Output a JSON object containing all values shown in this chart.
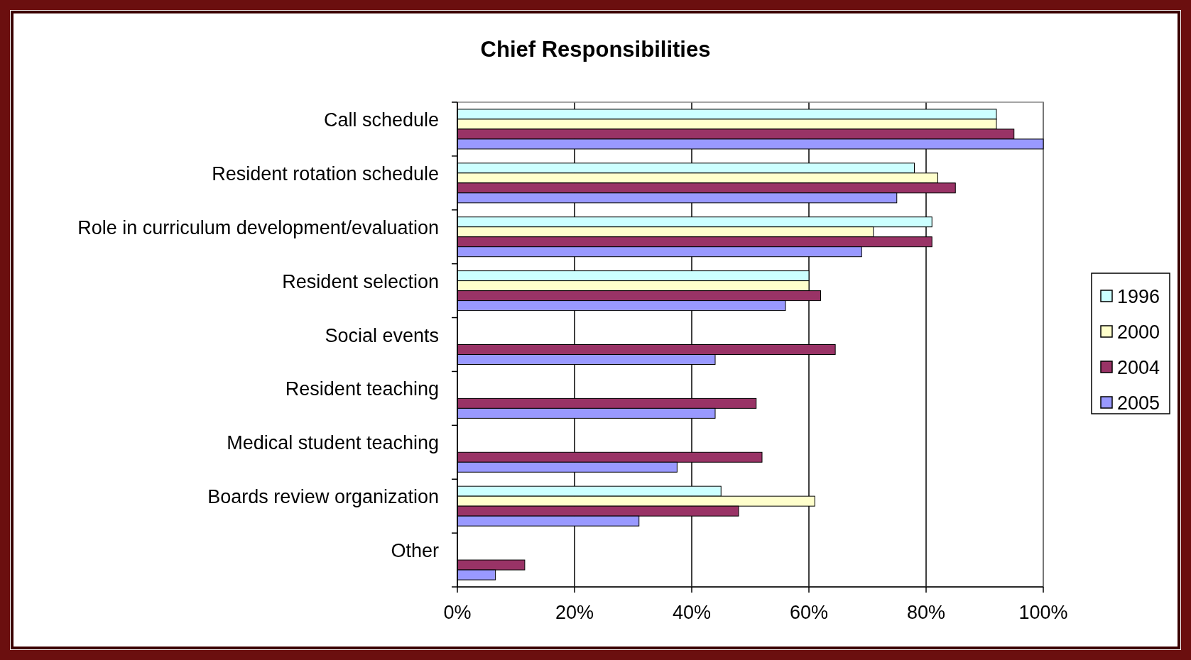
{
  "chart_data": {
    "type": "bar",
    "orientation": "horizontal",
    "title": "Chief Responsibilities",
    "categories": [
      "Call schedule",
      "Resident rotation schedule",
      "Role in curriculum development/evaluation",
      "Resident selection",
      "Social events",
      "Resident teaching",
      "Medical student teaching",
      "Boards review organization",
      "Other"
    ],
    "series": [
      {
        "name": "1996",
        "color": "#ccffff",
        "values": [
          92,
          78,
          81,
          60,
          null,
          null,
          null,
          45,
          null
        ]
      },
      {
        "name": "2000",
        "color": "#ffffcc",
        "values": [
          92,
          82,
          71,
          60,
          null,
          null,
          null,
          61,
          null
        ]
      },
      {
        "name": "2004",
        "color": "#993366",
        "values": [
          95,
          85,
          81,
          62,
          64.5,
          51,
          52,
          48,
          11.5
        ]
      },
      {
        "name": "2005",
        "color": "#9999ff",
        "values": [
          100,
          75,
          69,
          56,
          44,
          44,
          37.5,
          31,
          6.5
        ]
      }
    ],
    "xlim": [
      0,
      100
    ],
    "xticks": [
      {
        "value": 0,
        "label": "0%"
      },
      {
        "value": 20,
        "label": "20%"
      },
      {
        "value": 40,
        "label": "40%"
      },
      {
        "value": 60,
        "label": "60%"
      },
      {
        "value": 80,
        "label": "80%"
      },
      {
        "value": 100,
        "label": "100%"
      }
    ],
    "grid": "x",
    "legend": "right"
  }
}
